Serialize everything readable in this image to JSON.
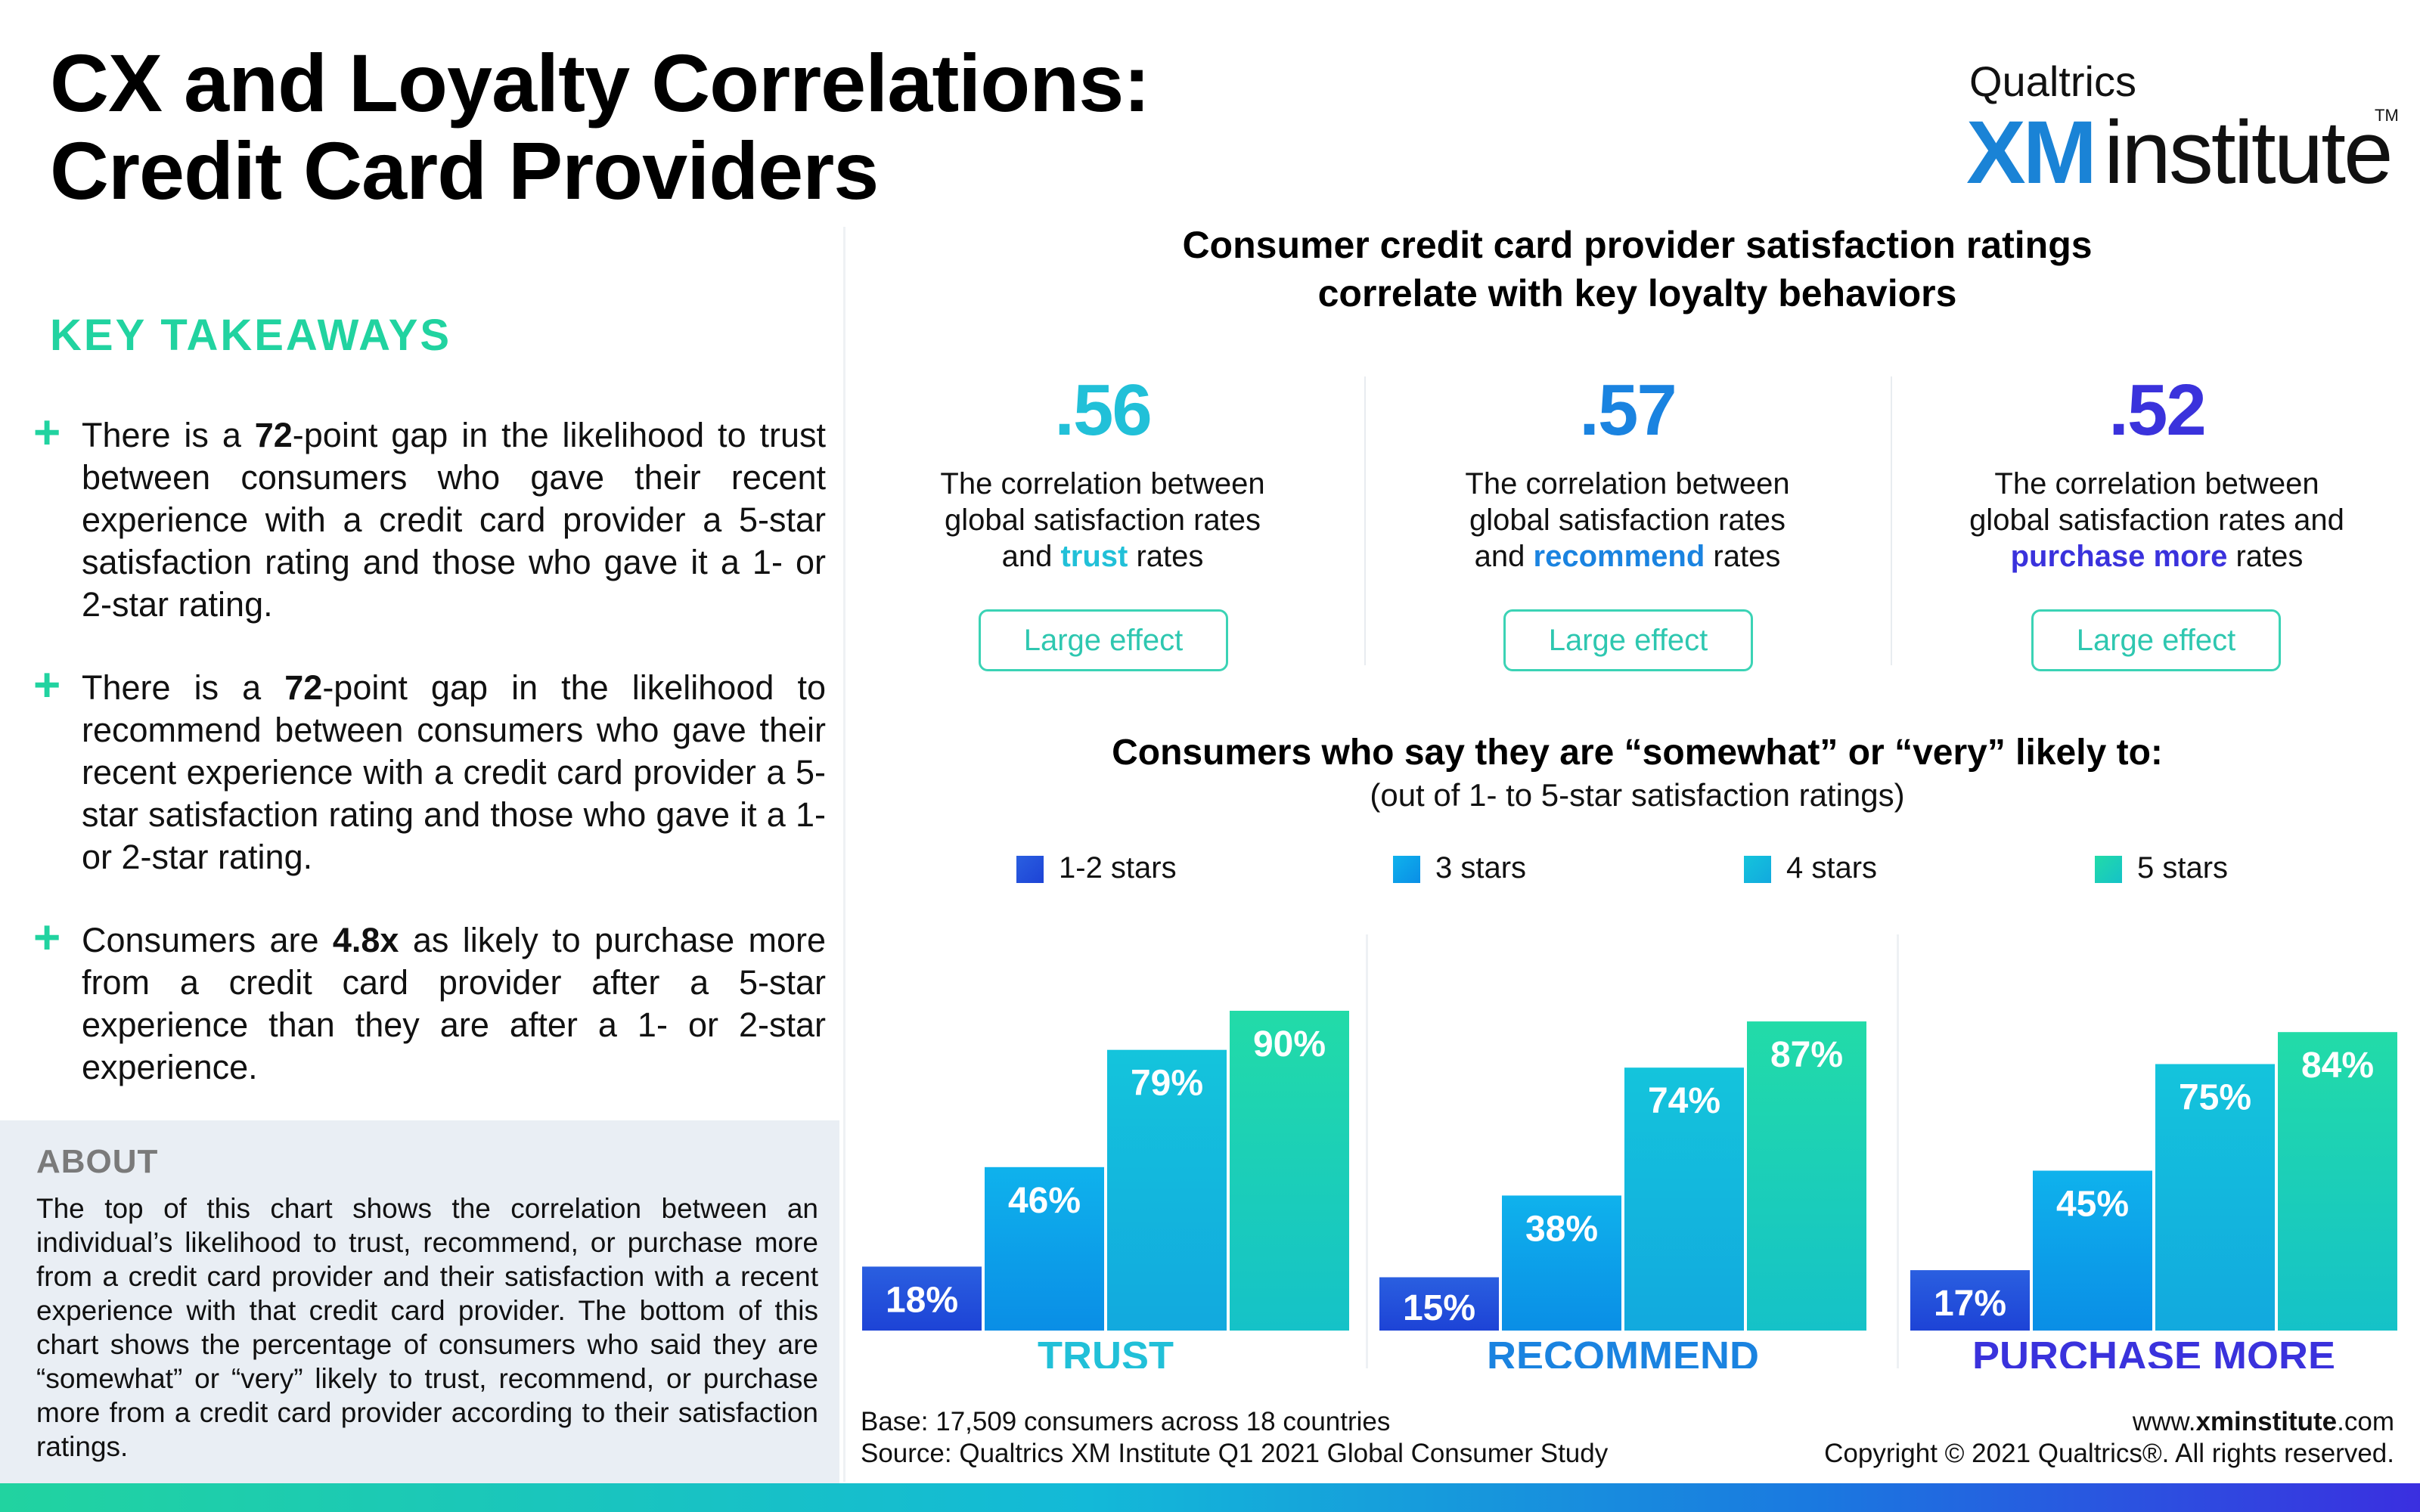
{
  "title": {
    "line1": "CX and Loyalty Correlations:",
    "line2": "Credit Card Providers"
  },
  "logo": {
    "brand": "Qualtrics",
    "xm": "XM",
    "institute": "institute",
    "tm": "TM"
  },
  "key_takeaways": {
    "heading": "KEY TAKEAWAYS",
    "items": [
      {
        "pre": "There is a ",
        "bold": "72",
        "post": "-point gap in the likelihood to trust between consumers who gave their recent experience with a credit card provider a 5-star satisfaction rating and those who gave it a 1- or 2-star rating."
      },
      {
        "pre": "There is a ",
        "bold": "72",
        "post": "-point gap in the likelihood to recommend between consumers who gave their recent experience with a credit card provider a 5-star satisfaction rating and those who gave it a 1- or 2-star rating."
      },
      {
        "pre": "Consumers are ",
        "bold": "4.8x",
        "post": " as likely to purchase more from a credit card provider after a 5-star experience than they are after a 1- or 2-star experience."
      }
    ]
  },
  "about": {
    "heading": "ABOUT",
    "text": "The top of this chart shows the correlation between an individual’s likelihood to trust, recommend, or purchase more from a credit card provider and their satisfaction with a recent experience with that credit card provider. The bottom of this chart shows the percentage of consumers who said they are “somewhat” or “very” likely to trust, recommend, or purchase more from a credit card provider according to their satisfaction ratings."
  },
  "correlations": {
    "title_line1": "Consumer credit card provider satisfaction ratings",
    "title_line2": "correlate with key loyalty behaviors",
    "items": [
      {
        "value": ".56",
        "color": "#21c0d8",
        "desc_line1": "The correlation between",
        "desc_line2": "global satisfaction rates",
        "desc_pre": "and ",
        "highlight": "trust",
        "desc_post": " rates",
        "effect": "Large effect"
      },
      {
        "value": ".57",
        "color": "#1a83e0",
        "desc_line1": "The correlation between",
        "desc_line2": "global satisfaction rates",
        "desc_pre": "and ",
        "highlight": "recommend",
        "desc_post": " rates",
        "effect": "Large effect"
      },
      {
        "value": ".52",
        "color": "#3a32dc",
        "desc_line1": "The correlation between",
        "desc_line2": "global satisfaction rates and",
        "desc_pre": "",
        "highlight": "purchase more",
        "desc_post": " rates",
        "effect": "Large effect"
      }
    ]
  },
  "chart_data": {
    "type": "bar",
    "title": "Consumers who say they are “somewhat” or “very” likely to:",
    "subtitle": "(out of 1- to 5-star satisfaction ratings)",
    "categories": [
      "TRUST",
      "RECOMMEND",
      "PURCHASE MORE"
    ],
    "category_colors": [
      "#21c0d8",
      "#1a83e0",
      "#3a32dc"
    ],
    "series": [
      {
        "name": "1-2 stars",
        "color_top": "#2a5fe0",
        "color_bottom": "#1d43d6",
        "values": [
          18,
          15,
          17
        ]
      },
      {
        "name": "3 stars",
        "color_top": "#0fb2ec",
        "color_bottom": "#0a8ee6",
        "values": [
          46,
          38,
          45
        ]
      },
      {
        "name": "4 stars",
        "color_top": "#14c4dc",
        "color_bottom": "#12a9de",
        "values": [
          79,
          74,
          75
        ]
      },
      {
        "name": "5 stars",
        "color_top": "#22dba8",
        "color_bottom": "#15c2c8",
        "values": [
          90,
          87,
          84
        ]
      }
    ],
    "value_suffix": "%",
    "ylim": [
      0,
      100
    ],
    "legend_position": "top",
    "grid": false
  },
  "footer": {
    "base": "Base: 17,509 consumers across 18 countries",
    "source": "Source: Qualtrics XM Institute Q1 2021 Global Consumer Study",
    "url_pre": "www.",
    "url_bold": "xminstitute",
    "url_post": ".com",
    "copyright": "Copyright © 2021 Qualtrics®. All rights reserved."
  }
}
